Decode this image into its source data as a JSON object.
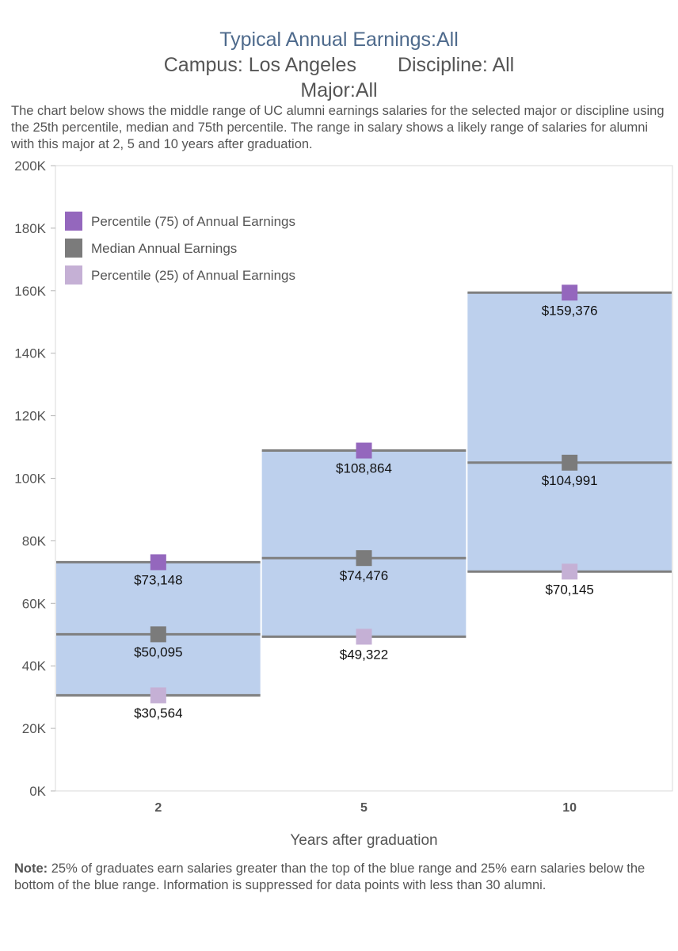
{
  "title": {
    "line1": "Typical Annual Earnings:All",
    "campus": "Campus: Los Angeles",
    "discipline": "Discipline: All",
    "major": "Major:All"
  },
  "description": "The chart below shows the middle range of UC alumni earnings salaries for the selected major or discipline using the 25th percentile, median and 75th percentile. The range in salary shows a likely range of salaries for alumni with this major at 2, 5 and 10 years after graduation.",
  "note": {
    "label": "Note:",
    "text": " 25% of graduates earn salaries greater than the top of the blue range and 25% earn salaries below the bottom of the blue range. Information is suppressed for data points with less than 30 alumni."
  },
  "colors": {
    "band": "#bdd0ed",
    "p75": "#9467bd",
    "median": "#7b7b7b",
    "p25": "#c5b0d5",
    "line": "#7f7f7f"
  },
  "chart_data": {
    "type": "range-bar",
    "title": "Typical Annual Earnings:All",
    "xlabel": "Years after graduation",
    "ylabel": "",
    "categories": [
      "2",
      "5",
      "10"
    ],
    "ylim": [
      0,
      200000
    ],
    "yticks": [
      0,
      20000,
      40000,
      60000,
      80000,
      100000,
      120000,
      140000,
      160000,
      180000,
      200000
    ],
    "ytick_labels": [
      "0K",
      "20K",
      "40K",
      "60K",
      "80K",
      "100K",
      "120K",
      "140K",
      "160K",
      "180K",
      "200K"
    ],
    "legend_position": "top-left",
    "series": [
      {
        "name": "Percentile (75) of Annual Earnings",
        "key": "p75",
        "values": [
          73148,
          108864,
          159376
        ],
        "labels": [
          "$73,148",
          "$108,864",
          "$159,376"
        ]
      },
      {
        "name": "Median Annual Earnings",
        "key": "median",
        "values": [
          50095,
          74476,
          104991
        ],
        "labels": [
          "$50,095",
          "$74,476",
          "$104,991"
        ]
      },
      {
        "name": "Percentile (25) of Annual Earnings",
        "key": "p25",
        "values": [
          30564,
          49322,
          70145
        ],
        "labels": [
          "$30,564",
          "$49,322",
          "$70,145"
        ]
      }
    ]
  }
}
